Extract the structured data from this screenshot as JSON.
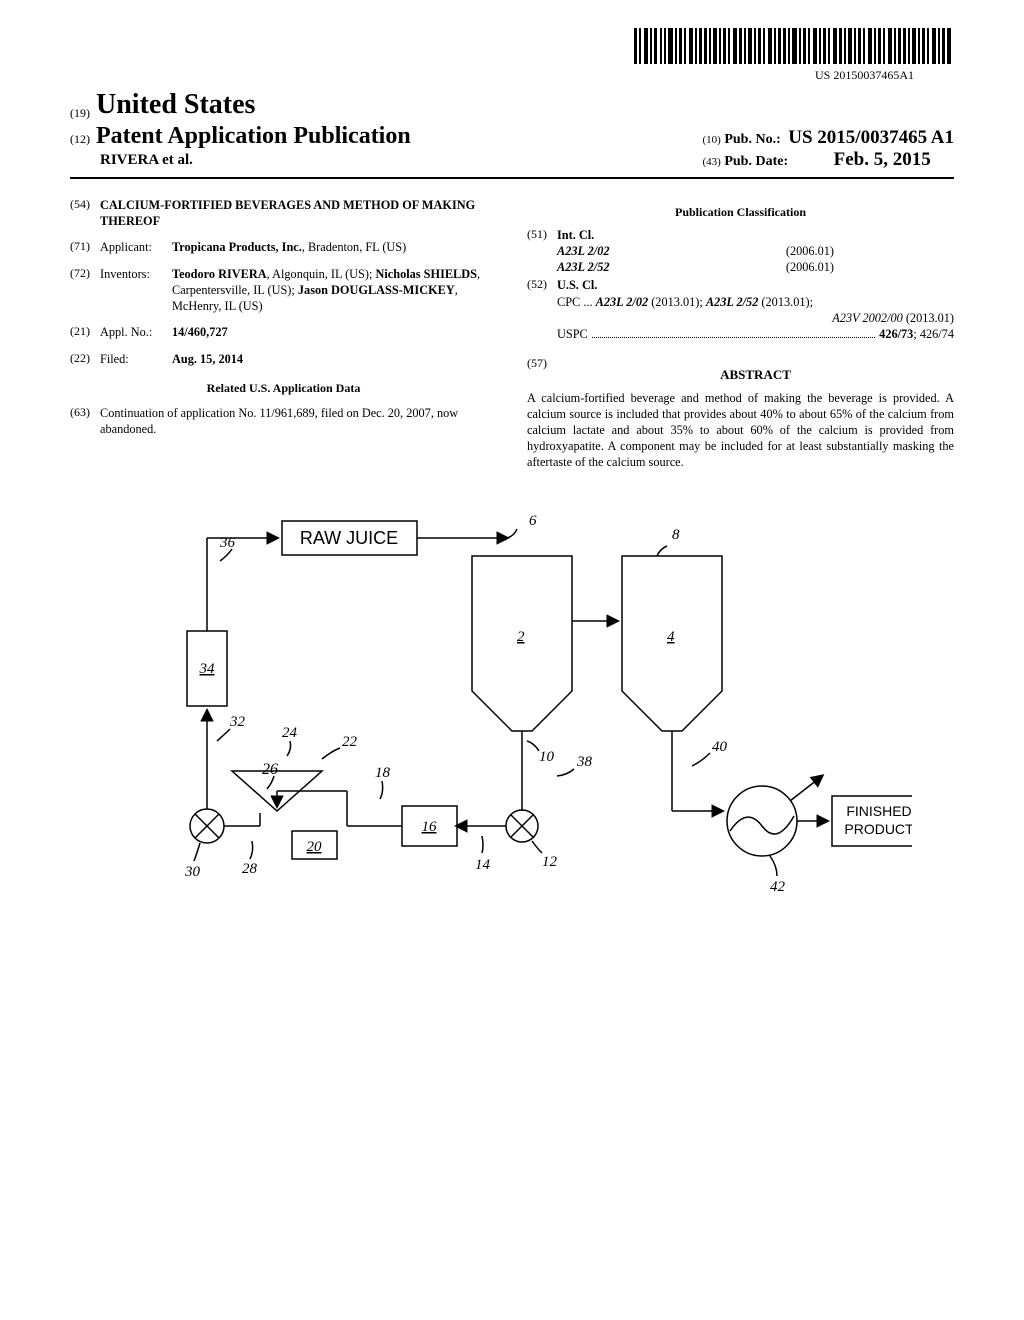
{
  "barcode_text": "US 20150037465A1",
  "header": {
    "country": "United States",
    "doc_type": "Patent Application Publication",
    "authors": "RIVERA et al.",
    "pub_no_label": "Pub. No.:",
    "pub_no": "US 2015/0037465 A1",
    "pub_date_label": "Pub. Date:",
    "pub_date": "Feb. 5, 2015"
  },
  "left": {
    "title": "CALCIUM-FORTIFIED BEVERAGES AND METHOD OF MAKING THEREOF",
    "applicant_label": "Applicant:",
    "applicant": "Tropicana Products, Inc.",
    "applicant_loc": ", Bradenton, FL (US)",
    "inventors_label": "Inventors:",
    "inventors_html": "Teodoro RIVERA|, Algonquin, IL (US); |Nicholas SHIELDS|, Carpentersville, IL (US); |Jason DOUGLASS-MICKEY|, McHenry, IL (US)",
    "appl_label": "Appl. No.:",
    "appl_no": "14/460,727",
    "filed_label": "Filed:",
    "filed": "Aug. 15, 2014",
    "related_head": "Related U.S. Application Data",
    "continuation": "Continuation of application No. 11/961,689, filed on Dec. 20, 2007, now abandoned."
  },
  "right": {
    "pub_class_head": "Publication Classification",
    "intcl_label": "Int. Cl.",
    "intcl1_code": "A23L 2/02",
    "intcl1_date": "(2006.01)",
    "intcl2_code": "A23L 2/52",
    "intcl2_date": "(2006.01)",
    "uscl_label": "U.S. Cl.",
    "cpc_prefix": "CPC",
    "cpc_line1": "A23L 2/02",
    "cpc_line1_date": " (2013.01); ",
    "cpc_line2": "A23L 2/52",
    "cpc_line2_date": " (2013.01);",
    "cpc_line3": "A23V 2002/00",
    "cpc_line3_date": " (2013.01)",
    "uspc_prefix": "USPC",
    "uspc_main": "426/73",
    "uspc_rest": "; 426/74",
    "abstract_head": "ABSTRACT",
    "abstract": "A calcium-fortified beverage and method of making the beverage is provided. A calcium source is included that provides about 40% to about 65% of the calcium from calcium lactate and about 35% to about 60% of the calcium is provided from hydroxyapatite. A component may be included for at least substantially masking the aftertaste of the calcium source."
  },
  "diagram": {
    "raw_juice": "RAW JUICE",
    "finished": "FINISHED PRODUCT",
    "labels": {
      "n2": "2",
      "n4": "4",
      "n6": "6",
      "n8": "8",
      "n10": "10",
      "n12": "12",
      "n14": "14",
      "n16": "16",
      "n18": "18",
      "n20": "20",
      "n22": "22",
      "n24": "24",
      "n26": "26",
      "n28": "28",
      "n30": "30",
      "n32": "32",
      "n34": "34",
      "n36": "36",
      "n38": "38",
      "n40": "40",
      "n42": "42"
    },
    "style": {
      "stroke": "#000000",
      "stroke_width": 1.5,
      "font": "italic 15px Times",
      "box_font": "18px Arial"
    }
  }
}
